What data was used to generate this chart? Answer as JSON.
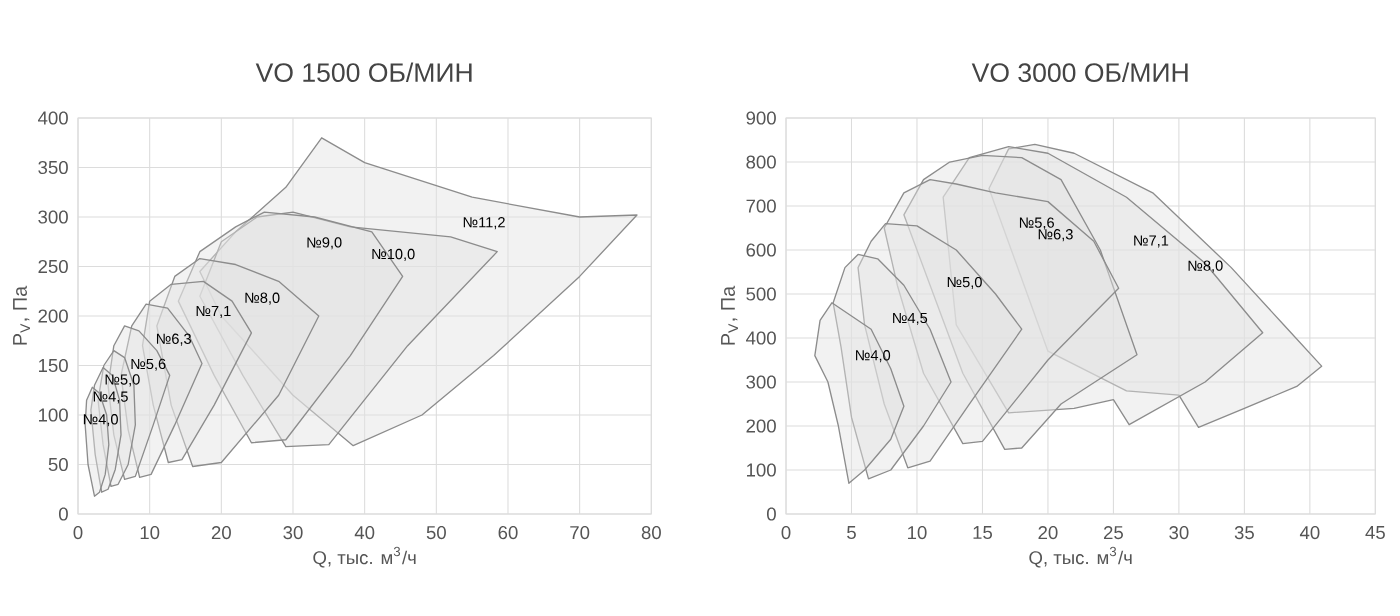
{
  "chart_data": [
    {
      "type": "area",
      "title": "VO 1500 ОБ/МИН",
      "xlabel": "Q, тыс. м$^{3}$/ч",
      "ylabel": "P$_{V}$, Па",
      "xlim": [
        0,
        80
      ],
      "ylim": [
        0,
        400
      ],
      "xticks": [
        0,
        10,
        20,
        30,
        40,
        50,
        60,
        70,
        80
      ],
      "yticks": [
        0,
        50,
        100,
        150,
        200,
        250,
        300,
        350,
        400
      ],
      "grid": true,
      "series": [
        {
          "name": "№4,0",
          "color": "#e2e2e2",
          "x": [
            2.3,
            1.4,
            1.0,
            1.2,
            2.0,
            3.0,
            4.0,
            4.3,
            3.8,
            3.0
          ],
          "values": [
            18,
            50,
            90,
            115,
            128,
            122,
            100,
            70,
            40,
            22
          ]
        },
        {
          "name": "№4,5",
          "color": "#e2e2e2",
          "x": [
            3.3,
            2.4,
            1.8,
            2.3,
            3.5,
            4.8,
            5.8,
            6.0,
            5.2,
            4.2
          ],
          "values": [
            22,
            60,
            105,
            130,
            148,
            140,
            115,
            80,
            45,
            25
          ]
        },
        {
          "name": "№5,0",
          "color": "#e2e2e2",
          "x": [
            4.6,
            3.5,
            2.8,
            3.6,
            5.0,
            6.5,
            7.8,
            8.0,
            7.0,
            5.6
          ],
          "values": [
            28,
            70,
            115,
            150,
            165,
            158,
            130,
            90,
            50,
            30
          ]
        },
        {
          "name": "№5,6",
          "color": "#e2e2e2",
          "x": [
            6.5,
            5.0,
            4.2,
            5.0,
            6.5,
            8.5,
            11.0,
            12.8,
            10.5,
            8.0
          ],
          "values": [
            35,
            80,
            130,
            170,
            190,
            185,
            165,
            140,
            90,
            38
          ]
        },
        {
          "name": "№6,3",
          "color": "#e2e2e2",
          "x": [
            8.6,
            7.0,
            6.0,
            7.5,
            9.5,
            12.5,
            15.5,
            17.3,
            13.5,
            10.2
          ],
          "values": [
            37,
            85,
            140,
            190,
            212,
            208,
            180,
            152,
            90,
            40
          ]
        },
        {
          "name": "№7,1",
          "color": "#e2e2e2",
          "x": [
            12.6,
            10.5,
            9.0,
            10.0,
            13.0,
            17.5,
            21.5,
            24.2,
            19.0,
            14.5
          ],
          "values": [
            52,
            110,
            170,
            215,
            232,
            235,
            215,
            183,
            110,
            55
          ]
        },
        {
          "name": "№8,0",
          "color": "#e2e2e2",
          "x": [
            16.0,
            13.0,
            11.0,
            13.5,
            17.0,
            22.0,
            28.0,
            33.6,
            28.0,
            20.0
          ],
          "values": [
            48,
            110,
            190,
            240,
            258,
            252,
            235,
            200,
            120,
            52
          ]
        },
        {
          "name": "№9,0",
          "color": "#e2e2e2",
          "x": [
            24.2,
            19.0,
            14.0,
            17.0,
            22.0,
            26.0,
            33.0,
            41.0,
            45.3,
            38.0,
            29.0
          ],
          "values": [
            72,
            140,
            215,
            265,
            290,
            305,
            300,
            285,
            240,
            160,
            75
          ]
        },
        {
          "name": "№10,0",
          "color": "#e2e2e2",
          "x": [
            29.0,
            23.0,
            17.0,
            20.0,
            25.0,
            30.0,
            38.0,
            52.0,
            58.5,
            46.0,
            35.0
          ],
          "values": [
            68,
            140,
            220,
            275,
            300,
            305,
            290,
            280,
            265,
            170,
            70
          ]
        },
        {
          "name": "№11,2",
          "color": "#e2e2e2",
          "x": [
            38.4,
            30.0,
            20.0,
            17.0,
            22.0,
            29.0,
            34.0,
            40.0,
            55.0,
            70.0,
            78.0,
            70.0,
            58.0,
            48.0
          ],
          "values": [
            69,
            120,
            200,
            245,
            285,
            330,
            380,
            355,
            320,
            300,
            302,
            240,
            160,
            100
          ]
        }
      ]
    },
    {
      "type": "area",
      "title": "VO 3000 ОБ/МИН",
      "xlabel": "Q, тыс. м$^{3}$/ч",
      "ylabel": "P$_{V}$, Па",
      "xlim": [
        0,
        45
      ],
      "ylim": [
        0,
        900
      ],
      "xticks": [
        0,
        5,
        10,
        15,
        20,
        25,
        30,
        35,
        40,
        45
      ],
      "yticks": [
        0,
        100,
        200,
        300,
        400,
        500,
        600,
        700,
        800,
        900
      ],
      "grid": true,
      "series": [
        {
          "name": "№4,0",
          "color": "#e2e2e2",
          "x": [
            4.8,
            4.0,
            3.2,
            2.2,
            2.6,
            3.5,
            5.0,
            6.5,
            8.0,
            9.0,
            8.0,
            6.0
          ],
          "values": [
            70,
            200,
            300,
            360,
            440,
            480,
            450,
            420,
            330,
            245,
            170,
            100
          ]
        },
        {
          "name": "№4,5",
          "color": "#e2e2e2",
          "x": [
            6.3,
            5.0,
            4.2,
            3.6,
            4.5,
            5.5,
            7.0,
            9.0,
            11.0,
            12.6,
            10.5,
            8.0
          ],
          "values": [
            80,
            220,
            380,
            480,
            560,
            590,
            580,
            520,
            420,
            300,
            200,
            100
          ]
        },
        {
          "name": "№5,0",
          "color": "#e2e2e2",
          "x": [
            9.3,
            7.5,
            6.0,
            5.5,
            6.5,
            7.6,
            10.0,
            13.0,
            16.0,
            18.0,
            14.0,
            11.0
          ],
          "values": [
            105,
            250,
            430,
            560,
            620,
            660,
            655,
            600,
            500,
            420,
            250,
            120
          ]
        },
        {
          "name": "№5,6",
          "color": "#e2e2e2",
          "x": [
            13.5,
            10.5,
            8.5,
            7.5,
            9.0,
            11.0,
            13.0,
            16.0,
            20.0,
            23.5,
            25.4,
            20.0,
            15.0
          ],
          "values": [
            160,
            320,
            520,
            650,
            730,
            760,
            750,
            730,
            710,
            620,
            513,
            350,
            165
          ]
        },
        {
          "name": "№6,3",
          "color": "#e2e2e2",
          "x": [
            16.7,
            13.5,
            11.0,
            9.0,
            10.5,
            12.5,
            15.0,
            18.0,
            21.0,
            24.0,
            26.8,
            21.0,
            18.0
          ],
          "values": [
            147,
            320,
            520,
            680,
            760,
            800,
            815,
            810,
            760,
            600,
            362,
            250,
            150
          ]
        },
        {
          "name": "№7,1",
          "color": "#e2e2e2",
          "x": [
            26.2,
            25.0,
            22.0,
            17.0,
            13.0,
            12.0,
            14.0,
            17.0,
            20.0,
            26.0,
            32.0,
            36.4,
            32.0
          ],
          "values": [
            203,
            260,
            240,
            230,
            430,
            720,
            810,
            835,
            820,
            720,
            570,
            412,
            300
          ]
        },
        {
          "name": "№8,0",
          "color": "#e2e2e2",
          "x": [
            31.5,
            30.0,
            26.0,
            20.0,
            15.5,
            17.0,
            19.0,
            22.0,
            28.0,
            34.0,
            38.0,
            40.9,
            39.0,
            35.0
          ],
          "values": [
            197,
            270,
            280,
            370,
            740,
            830,
            840,
            820,
            730,
            560,
            430,
            336,
            290,
            240
          ]
        }
      ]
    }
  ]
}
